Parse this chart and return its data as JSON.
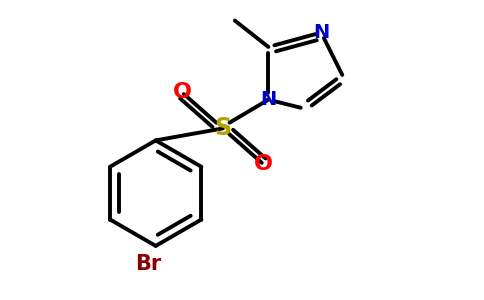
{
  "background_color": "#ffffff",
  "bond_color": "#000000",
  "bond_width": 2.8,
  "S_color": "#b8a000",
  "O_color": "#ff0000",
  "N_color": "#0000cc",
  "Br_color": "#8b0000",
  "figsize": [
    4.84,
    3.0
  ],
  "dpi": 100,
  "xlim": [
    0,
    10
  ],
  "ylim": [
    0,
    6.2
  ]
}
